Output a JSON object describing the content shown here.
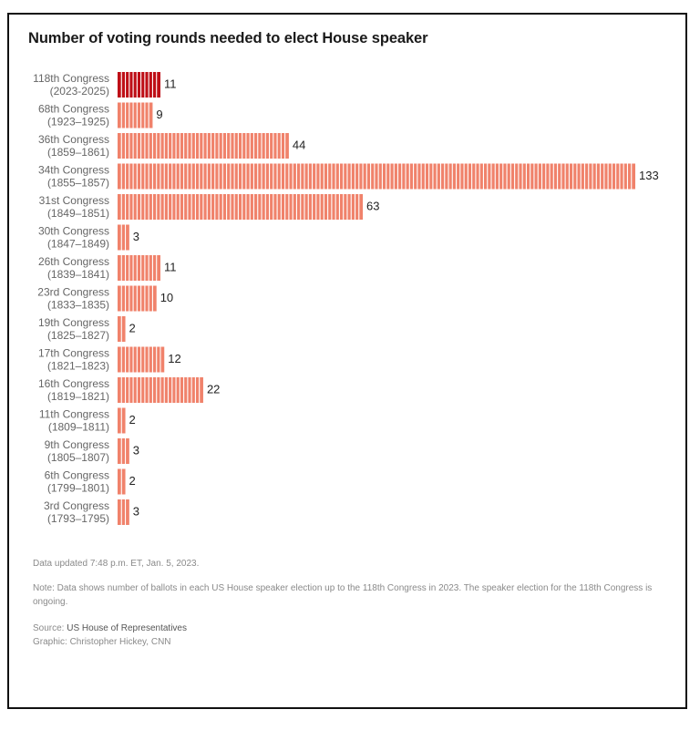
{
  "title": "Number of voting rounds needed to elect House speaker",
  "footer": {
    "updated": "Data updated 7:48 p.m. ET, Jan. 5, 2023.",
    "note": "Note: Data shows number of ballots in each US House speaker election up to the 118th Congress in 2023. The speaker election for the 118th Congress is ongoing.",
    "source_prefix": "Source: ",
    "source_name": "US House of Representatives",
    "graphic_prefix": "Graphic: ",
    "graphic_name": "Christopher Hickey, CNN"
  },
  "colors": {
    "highlight": "#be0f17",
    "bar": "#f0826b",
    "stripe": "#ffffff"
  },
  "chart_data": {
    "type": "bar",
    "orientation": "horizontal",
    "title": "Number of voting rounds needed to elect House speaker",
    "xlabel": "",
    "ylabel": "",
    "xlim": [
      0,
      133
    ],
    "grid": false,
    "bar_style": "striped (one stripe per ballot)",
    "categories": [
      {
        "name": "118th Congress",
        "years": "(2023-2025)",
        "value": 11,
        "highlight": true
      },
      {
        "name": "68th Congress",
        "years": "(1923–1925)",
        "value": 9,
        "highlight": false
      },
      {
        "name": "36th Congress",
        "years": "(1859–1861)",
        "value": 44,
        "highlight": false
      },
      {
        "name": "34th Congress",
        "years": "(1855–1857)",
        "value": 133,
        "highlight": false
      },
      {
        "name": "31st Congress",
        "years": "(1849–1851)",
        "value": 63,
        "highlight": false
      },
      {
        "name": "30th Congress",
        "years": "(1847–1849)",
        "value": 3,
        "highlight": false
      },
      {
        "name": "26th Congress",
        "years": "(1839–1841)",
        "value": 11,
        "highlight": false
      },
      {
        "name": "23rd Congress",
        "years": "(1833–1835)",
        "value": 10,
        "highlight": false
      },
      {
        "name": "19th Congress",
        "years": "(1825–1827)",
        "value": 2,
        "highlight": false
      },
      {
        "name": "17th Congress",
        "years": "(1821–1823)",
        "value": 12,
        "highlight": false
      },
      {
        "name": "16th Congress",
        "years": "(1819–1821)",
        "value": 22,
        "highlight": false
      },
      {
        "name": "11th Congress",
        "years": "(1809–1811)",
        "value": 2,
        "highlight": false
      },
      {
        "name": "9th Congress",
        "years": "(1805–1807)",
        "value": 3,
        "highlight": false
      },
      {
        "name": "6th Congress",
        "years": "(1799–1801)",
        "value": 2,
        "highlight": false
      },
      {
        "name": "3rd Congress",
        "years": "(1793–1795)",
        "value": 3,
        "highlight": false
      }
    ]
  }
}
